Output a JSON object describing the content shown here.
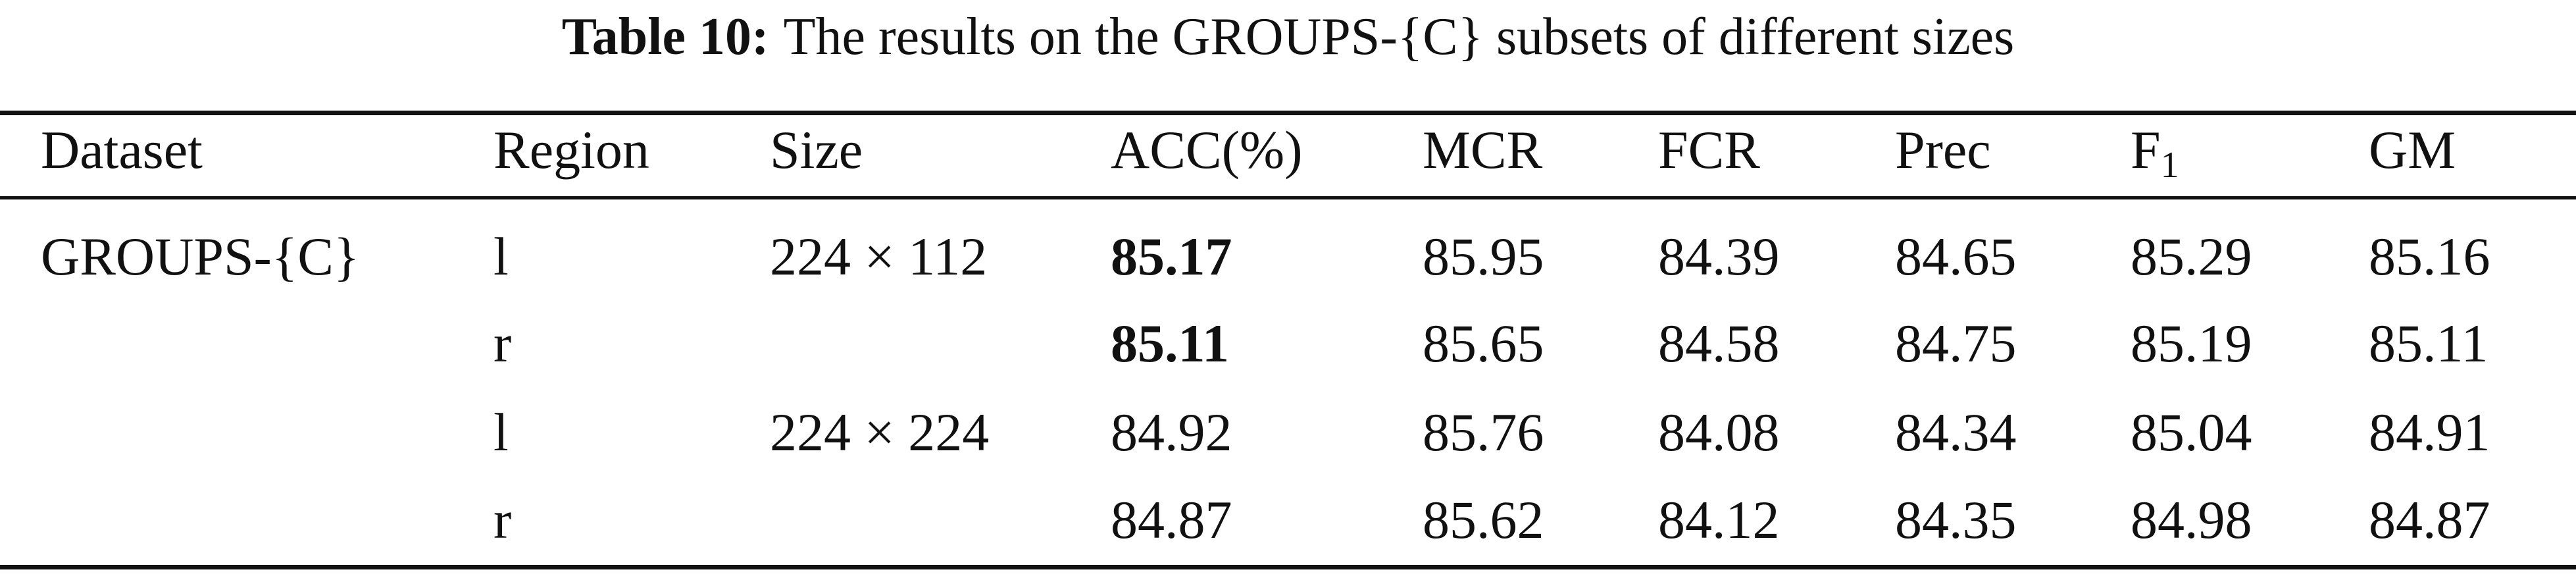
{
  "caption": {
    "label": "Table 10:",
    "text": "The results on the GROUPS-{C} subsets of different sizes"
  },
  "table": {
    "headers": [
      "Dataset",
      "Region",
      "Size",
      "ACC(%)",
      "MCR",
      "FCR",
      "Prec",
      {
        "base": "F",
        "sub": "1"
      },
      "GM"
    ],
    "rows": [
      {
        "cells": [
          "GROUPS-{C}",
          "l",
          "224 × 112",
          "85.17",
          "85.95",
          "84.39",
          "84.65",
          "85.29",
          "85.16"
        ],
        "bold": [
          3
        ]
      },
      {
        "cells": [
          null,
          "r",
          null,
          "85.11",
          "85.65",
          "84.58",
          "84.75",
          "85.19",
          "85.11"
        ],
        "bold": [
          3
        ]
      },
      {
        "cells": [
          null,
          "l",
          "224 × 224",
          "84.92",
          "85.76",
          "84.08",
          "84.34",
          "85.04",
          "84.91"
        ],
        "bold": []
      },
      {
        "cells": [
          null,
          "r",
          null,
          "84.87",
          "85.62",
          "84.12",
          "84.35",
          "84.98",
          "84.87"
        ],
        "bold": []
      }
    ]
  }
}
